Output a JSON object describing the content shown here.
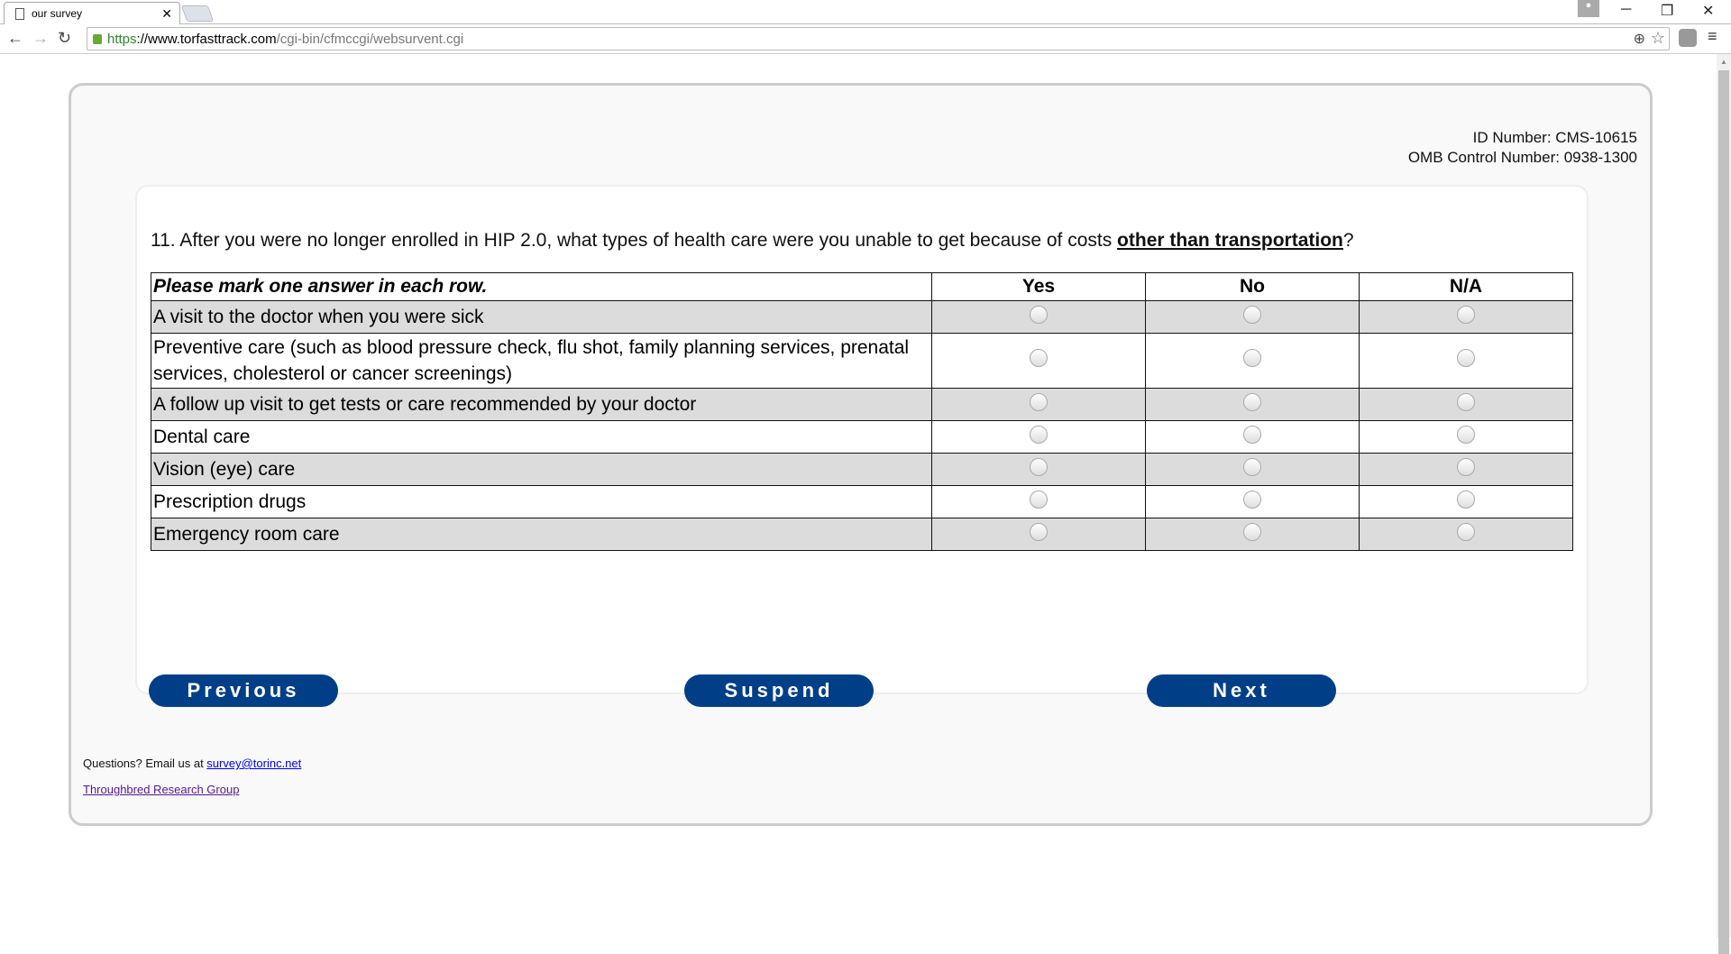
{
  "browser": {
    "tab_title": "our survey",
    "url_scheme": "https",
    "url_domain": "://www.torfasttrack.com",
    "url_path": "/cgi-bin/cfmccgi/websurvent.cgi"
  },
  "header": {
    "id_number": "ID Number: CMS-10615",
    "omb_number": "OMB Control Number: 0938-1300"
  },
  "question": {
    "text_before": "11. After you were no longer enrolled in HIP 2.0, what types of health care were you unable to get because of costs ",
    "emphasis": "other than transportation",
    "text_after": "?"
  },
  "grid": {
    "instruction": "Please mark one answer in each row.",
    "columns": [
      "Yes",
      "No",
      "N/A"
    ],
    "rows": [
      "A visit to the doctor when you were sick",
      "Preventive care (such as blood pressure check, flu shot, family planning services, prenatal services, cholesterol or cancer screenings)",
      "A follow up visit to get tests or care recommended by your doctor",
      "Dental care",
      "Vision (eye) care",
      "Prescription drugs",
      "Emergency room care"
    ]
  },
  "buttons": {
    "previous": "Previous",
    "suspend": "Suspend",
    "next": "Next"
  },
  "colors": {
    "button": "#003f87"
  },
  "footer": {
    "questions": "Questions? Email us at ",
    "email": "survey@torinc.net",
    "org": "Throughbred Research Group"
  }
}
